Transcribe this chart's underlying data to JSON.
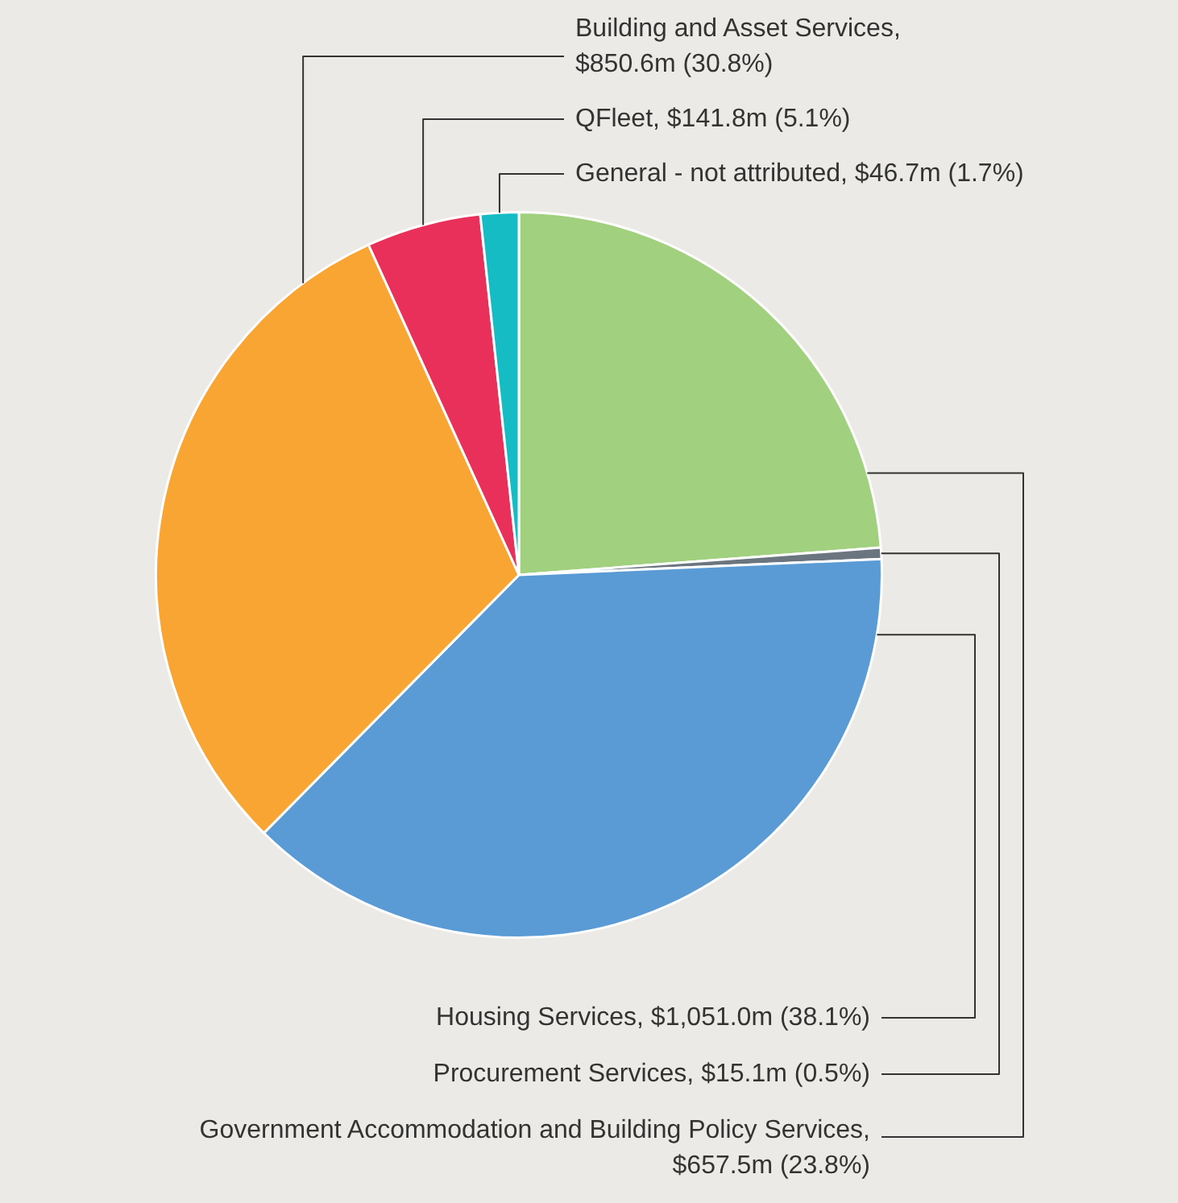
{
  "chart_data": {
    "type": "pie",
    "categories": [
      "Government Accommodation and Building Policy Services, $657.5m (23.8%)",
      "Procurement Services, $15.1m (0.5%)",
      "Housing Services, $1,051.0m (38.1%)",
      "Building and Asset Services, $850.6m (30.8%)",
      "QFleet, $141.8m (5.1%)",
      "General - not attributed, $46.7m (1.7%)"
    ],
    "values": [
      23.8,
      0.5,
      38.1,
      30.8,
      5.1,
      1.7
    ],
    "colors": [
      "#a1d17f",
      "#6b7580",
      "#5b9bd5",
      "#f9a533",
      "#e8305a",
      "#16bcc4"
    ]
  }
}
